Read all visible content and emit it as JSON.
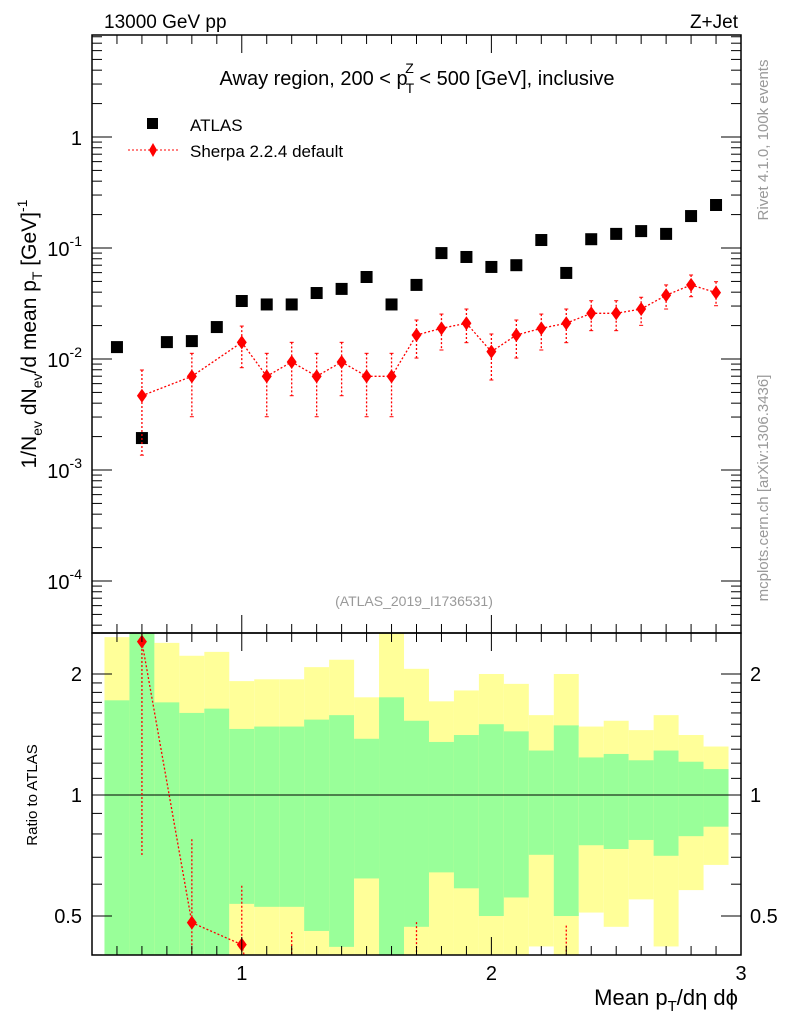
{
  "header": {
    "left": "13000 GeV pp",
    "right": "Z+Jet"
  },
  "side_labels": {
    "rivet": "Rivet 4.1.0,  100k events",
    "mcplots": "mcplots.cern.ch [arXiv:1306.3436]"
  },
  "watermark": "(ATLAS_2019_I1736531)",
  "colors": {
    "atlas": "#000000",
    "sherpa": "#ff0000",
    "stat_band": "#99ff99",
    "total_band": "#ffff99"
  },
  "chart_data": [
    {
      "type": "scatter",
      "scale": "log",
      "title_parts": {
        "pre": "Away region, 200 < p",
        "sub": "T",
        "sup": "Z",
        "post": " < 500 [GeV], inclusive"
      },
      "ylabel_parts": {
        "a": "1/N",
        "a_sub": "ev",
        "b": " dN",
        "b_sub": "ev",
        "c": "/d mean p",
        "c_sub": "T",
        "d": " [GeV]",
        "d_sup": "-1"
      },
      "xlim": [
        0.4,
        3.0
      ],
      "ylim": [
        3.4e-05,
        8.3
      ],
      "y_ticks": [
        {
          "v": 1,
          "base": "1",
          "exp": ""
        },
        {
          "v": 0.1,
          "base": "10",
          "exp": "-1"
        },
        {
          "v": 0.01,
          "base": "10",
          "exp": "-2"
        },
        {
          "v": 0.001,
          "base": "10",
          "exp": "-3"
        },
        {
          "v": 0.0001,
          "base": "10",
          "exp": "-4"
        }
      ],
      "legend": {
        "placement": "top-left",
        "entries": [
          "ATLAS",
          "Sherpa 2.2.4 default"
        ]
      },
      "series": [
        {
          "name": "ATLAS",
          "x": [
            0.5,
            0.6,
            0.7,
            0.8,
            0.9,
            1.0,
            1.1,
            1.2,
            1.3,
            1.4,
            1.5,
            1.6,
            1.7,
            1.8,
            1.9,
            2.0,
            2.1,
            2.2,
            2.3,
            2.4,
            2.5,
            2.6,
            2.7,
            2.8,
            2.9
          ],
          "y": [
            0.0128,
            0.00194,
            0.0142,
            0.0145,
            0.0194,
            0.0333,
            0.031,
            0.031,
            0.0393,
            0.0428,
            0.0548,
            0.031,
            0.0465,
            0.09,
            0.083,
            0.0675,
            0.07,
            0.118,
            0.0596,
            0.12,
            0.134,
            0.142,
            0.134,
            0.194,
            0.244
          ]
        },
        {
          "name": "Sherpa 2.2.4 default",
          "x": [
            0.6,
            0.8,
            1.0,
            1.1,
            1.2,
            1.3,
            1.4,
            1.5,
            1.6,
            1.7,
            1.8,
            1.9,
            2.0,
            2.1,
            2.2,
            2.3,
            2.4,
            2.5,
            2.6,
            2.7,
            2.8,
            2.9
          ],
          "y": [
            0.00467,
            0.00698,
            0.01413,
            0.00698,
            0.0094,
            0.00698,
            0.0094,
            0.00698,
            0.00698,
            0.01644,
            0.0189,
            0.021,
            0.01164,
            0.01644,
            0.0189,
            0.021,
            0.0258,
            0.0258,
            0.0282,
            0.0375,
            0.0465,
            0.0396
          ],
          "y_hi": [
            0.00796,
            0.01125,
            0.0198,
            0.01125,
            0.01413,
            0.01125,
            0.01413,
            0.01125,
            0.01125,
            0.02245,
            0.0254,
            0.0282,
            0.0168,
            0.02245,
            0.0254,
            0.0282,
            0.0335,
            0.0335,
            0.036,
            0.0465,
            0.0571,
            0.0497
          ],
          "y_lo": [
            0.00136,
            0.00302,
            0.00835,
            0.00302,
            0.00467,
            0.00302,
            0.00467,
            0.00302,
            0.00302,
            0.0102,
            0.01205,
            0.01403,
            0.00647,
            0.0102,
            0.01205,
            0.01403,
            0.018,
            0.018,
            0.0201,
            0.0282,
            0.0364,
            0.0302
          ]
        }
      ]
    },
    {
      "type": "scatter",
      "scale": "log",
      "ylabel": "Ratio to ATLAS",
      "xlabel_parts": {
        "a": "Mean p",
        "a_sub": "T",
        "b": "/dη dϕ"
      },
      "xlim": [
        0.4,
        3.0
      ],
      "ylim": [
        0.4,
        2.53
      ],
      "x_ticks": [
        "1",
        "2",
        "3"
      ],
      "y_ticks": [
        "0.5",
        "1",
        "2"
      ],
      "band_bin_width": 0.1,
      "bands": {
        "x": [
          0.5,
          0.6,
          0.7,
          0.8,
          0.9,
          1.0,
          1.1,
          1.2,
          1.3,
          1.4,
          1.5,
          1.6,
          1.7,
          1.8,
          1.9,
          2.0,
          2.1,
          2.2,
          2.3,
          2.4,
          2.5,
          2.6,
          2.7,
          2.8,
          2.9
        ],
        "stat_lo": [
          0.3,
          0.3,
          0.3,
          0.3,
          0.3,
          0.536,
          0.527,
          0.527,
          0.459,
          0.419,
          0.62,
          0.3,
          0.47,
          0.642,
          0.586,
          0.5,
          0.556,
          0.71,
          0.5,
          0.75,
          0.734,
          0.773,
          0.706,
          0.79,
          0.834
        ],
        "stat_hi": [
          1.72,
          3,
          1.7,
          1.6,
          1.64,
          1.46,
          1.48,
          1.48,
          1.54,
          1.58,
          1.38,
          1.75,
          1.53,
          1.355,
          1.41,
          1.5,
          1.44,
          1.29,
          1.49,
          1.24,
          1.265,
          1.22,
          1.29,
          1.21,
          1.16
        ],
        "total_lo": [
          0.3,
          0.3,
          0.3,
          0.3,
          0.3,
          0.3,
          0.3,
          0.3,
          0.3,
          0.3,
          0.3,
          0.3,
          0.3,
          0.3,
          0.3,
          0.3,
          0.3,
          0.42,
          0.3,
          0.51,
          0.47,
          0.55,
          0.42,
          0.58,
          0.67
        ],
        "total_hi": [
          2.47,
          3,
          2.39,
          2.22,
          2.27,
          1.92,
          1.94,
          1.94,
          2.08,
          2.17,
          1.75,
          3,
          2.06,
          1.71,
          1.82,
          2.0,
          1.89,
          1.58,
          2.0,
          1.48,
          1.53,
          1.45,
          1.58,
          1.41,
          1.32
        ]
      }
    }
  ]
}
